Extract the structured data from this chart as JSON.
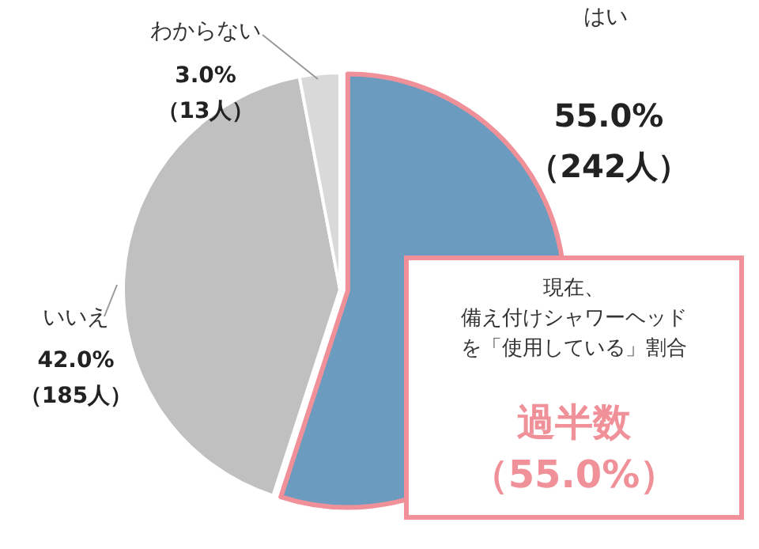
{
  "chart_data": {
    "type": "pie",
    "categories": [
      "はい",
      "いいえ",
      "わからない"
    ],
    "values": [
      55.0,
      42.0,
      3.0
    ],
    "colors": [
      "#6b9bbf",
      "#c0c0c0",
      "#d9d9d9"
    ],
    "value_labels": [
      "55.0%\n（242人）",
      "42.0%\n（185人）",
      "3.0%\n（13人）"
    ],
    "annotations": [
      "現在、",
      "備え付けシャワーヘッド",
      "を「使用している」割合",
      "過半数",
      "（55.0%）"
    ]
  }
}
